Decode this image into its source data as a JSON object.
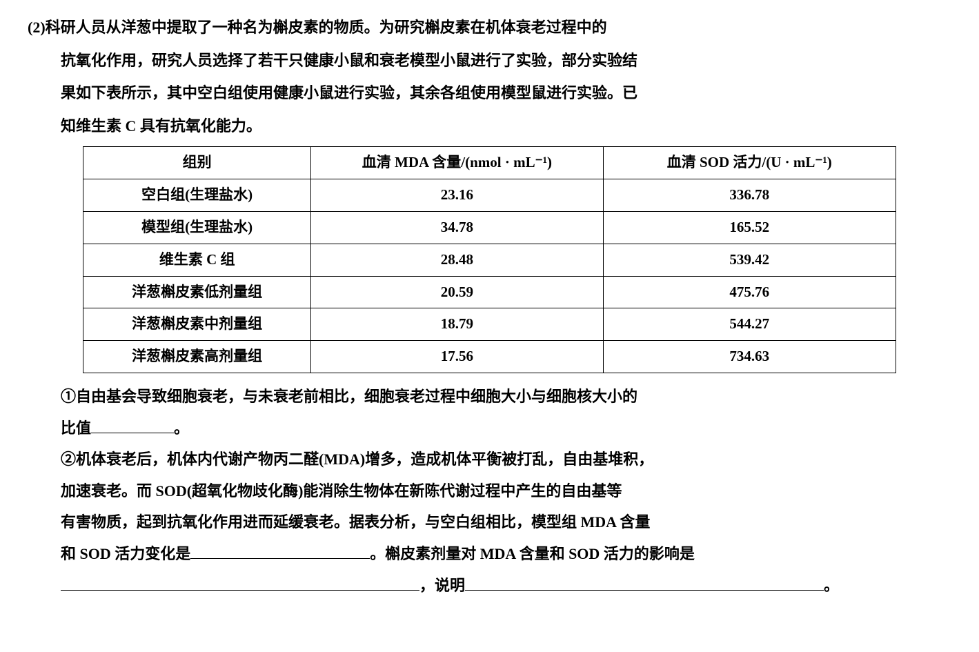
{
  "question": {
    "number": "(2)",
    "intro_line": "科研人员从洋葱中提取了一种名为槲皮素的物质。为研究槲皮素在机体衰老过程中的",
    "intro_cont1": "抗氧化作用，研究人员选择了若干只健康小鼠和衰老模型小鼠进行了实验，部分实验结",
    "intro_cont2": "果如下表所示，其中空白组使用健康小鼠进行实验，其余各组使用模型鼠进行实验。已",
    "intro_cont3": "知维生素 C 具有抗氧化能力。"
  },
  "table": {
    "headers": {
      "group": "组别",
      "mda": "血清 MDA 含量/(nmol · mL⁻¹)",
      "sod": "血清 SOD 活力/(U · mL⁻¹)"
    },
    "rows": [
      {
        "group": "空白组(生理盐水)",
        "mda": "23.16",
        "sod": "336.78"
      },
      {
        "group": "模型组(生理盐水)",
        "mda": "34.78",
        "sod": "165.52"
      },
      {
        "group": "维生素 C 组",
        "mda": "28.48",
        "sod": "539.42"
      },
      {
        "group": "洋葱槲皮素低剂量组",
        "mda": "20.59",
        "sod": "475.76"
      },
      {
        "group": "洋葱槲皮素中剂量组",
        "mda": "18.79",
        "sod": "544.27"
      },
      {
        "group": "洋葱槲皮素高剂量组",
        "mda": "17.56",
        "sod": "734.63"
      }
    ]
  },
  "subq1": {
    "label": "①",
    "text_a": "自由基会导致细胞衰老，与未衰老前相比，细胞衰老过程中细胞大小与细胞核大小的",
    "text_b": "比值",
    "period": "。"
  },
  "subq2": {
    "label": "②",
    "line1": "机体衰老后，机体内代谢产物丙二醛(MDA)增多，造成机体平衡被打乱，自由基堆积，",
    "line2": "加速衰老。而 SOD(超氧化物歧化酶)能消除生物体在新陈代谢过程中产生的自由基等",
    "line3": "有害物质，起到抗氧化作用进而延缓衰老。据表分析，与空白组相比，模型组 MDA 含量",
    "line4a": "和 SOD 活力变化是",
    "line4b": "。槲皮素剂量对 MDA 含量和 SOD 活力的影响是",
    "line5a": "，说明",
    "line5b": "。"
  }
}
